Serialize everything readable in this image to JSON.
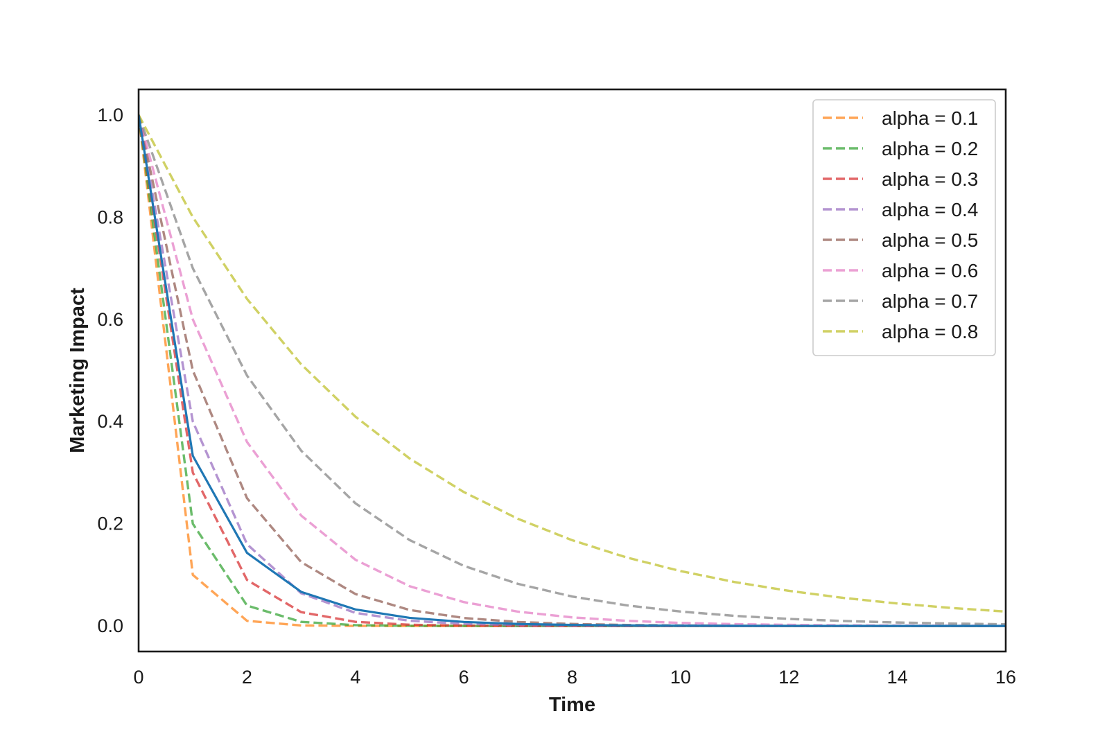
{
  "chart_data": {
    "type": "line",
    "title": "",
    "xlabel": "Time",
    "ylabel": "Marketing Impact",
    "xlim": [
      0,
      16
    ],
    "ylim": [
      -0.05,
      1.05
    ],
    "x_ticks": [
      "0",
      "2",
      "4",
      "6",
      "8",
      "10",
      "12",
      "14",
      "16"
    ],
    "y_ticks": [
      "0.0",
      "0.2",
      "0.4",
      "0.6",
      "0.8",
      "1.0"
    ],
    "grid": false,
    "legend_position": "top-right",
    "x": [
      0,
      1,
      2,
      3,
      4,
      5,
      6,
      7,
      8,
      9,
      10,
      11,
      12,
      13,
      14,
      15,
      16
    ],
    "series": [
      {
        "color": "#1f77b4",
        "style": "solid",
        "values": [
          1.0,
          0.333,
          0.143,
          0.0667,
          0.0323,
          0.0159,
          0.0079,
          0.0039,
          0.002,
          0.001,
          0.0005,
          0.0002,
          0.0001,
          0.0001,
          0.0,
          0.0,
          0.0
        ]
      },
      {
        "name": "alpha = 0.1",
        "color": "#ff7f0e",
        "style": "dashed",
        "values": [
          1.0,
          0.1,
          0.01,
          0.001,
          0.0001,
          0.0,
          0.0,
          0.0,
          0.0,
          0.0,
          0.0,
          0.0,
          0.0,
          0.0,
          0.0,
          0.0,
          0.0
        ]
      },
      {
        "name": "alpha = 0.2",
        "color": "#2ca02c",
        "style": "dashed",
        "values": [
          1.0,
          0.2,
          0.04,
          0.008,
          0.0016,
          0.0003,
          0.0001,
          0.0,
          0.0,
          0.0,
          0.0,
          0.0,
          0.0,
          0.0,
          0.0,
          0.0,
          0.0
        ]
      },
      {
        "name": "alpha = 0.3",
        "color": "#d62728",
        "style": "dashed",
        "values": [
          1.0,
          0.3,
          0.09,
          0.027,
          0.0081,
          0.0024,
          0.0007,
          0.0002,
          0.0001,
          0.0,
          0.0,
          0.0,
          0.0,
          0.0,
          0.0,
          0.0,
          0.0
        ]
      },
      {
        "name": "alpha = 0.4",
        "color": "#9467bd",
        "style": "dashed",
        "values": [
          1.0,
          0.4,
          0.16,
          0.064,
          0.0256,
          0.0102,
          0.0041,
          0.0016,
          0.0007,
          0.0003,
          0.0001,
          0.0,
          0.0,
          0.0,
          0.0,
          0.0,
          0.0
        ]
      },
      {
        "name": "alpha = 0.5",
        "color": "#8c564b",
        "style": "dashed",
        "values": [
          1.0,
          0.5,
          0.25,
          0.125,
          0.0625,
          0.0313,
          0.0156,
          0.0078,
          0.0039,
          0.002,
          0.001,
          0.0005,
          0.0002,
          0.0001,
          0.0001,
          0.0,
          0.0
        ]
      },
      {
        "name": "alpha = 0.6",
        "color": "#e377c2",
        "style": "dashed",
        "values": [
          1.0,
          0.6,
          0.36,
          0.216,
          0.1296,
          0.0778,
          0.0467,
          0.028,
          0.0168,
          0.0101,
          0.006,
          0.0036,
          0.0022,
          0.0013,
          0.0008,
          0.0005,
          0.0003
        ]
      },
      {
        "name": "alpha = 0.7",
        "color": "#7f7f7f",
        "style": "dashed",
        "values": [
          1.0,
          0.7,
          0.49,
          0.343,
          0.2401,
          0.1681,
          0.1176,
          0.0824,
          0.0576,
          0.0404,
          0.0282,
          0.0198,
          0.0138,
          0.0097,
          0.0068,
          0.0047,
          0.0033
        ]
      },
      {
        "name": "alpha = 0.8",
        "color": "#bcbd22",
        "style": "dashed",
        "values": [
          1.0,
          0.8,
          0.64,
          0.512,
          0.4096,
          0.3277,
          0.2621,
          0.2097,
          0.1678,
          0.1342,
          0.1074,
          0.0859,
          0.0687,
          0.055,
          0.044,
          0.0352,
          0.0281
        ]
      }
    ]
  }
}
